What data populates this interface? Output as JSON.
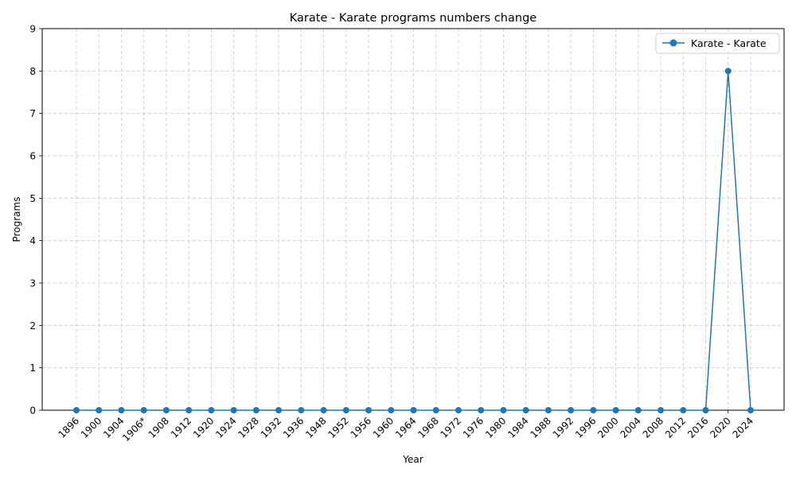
{
  "chart_data": {
    "type": "line",
    "title": "Karate - Karate programs numbers change",
    "xlabel": "Year",
    "ylabel": "Programs",
    "categories": [
      "1896",
      "1900",
      "1904",
      "1906*",
      "1908",
      "1912",
      "1920",
      "1924",
      "1928",
      "1932",
      "1936",
      "1948",
      "1952",
      "1956",
      "1960",
      "1964",
      "1968",
      "1972",
      "1976",
      "1980",
      "1984",
      "1988",
      "1992",
      "1996",
      "2000",
      "2004",
      "2008",
      "2012",
      "2016",
      "2020",
      "2024"
    ],
    "series": [
      {
        "name": "Karate - Karate",
        "values": [
          0,
          0,
          0,
          0,
          0,
          0,
          0,
          0,
          0,
          0,
          0,
          0,
          0,
          0,
          0,
          0,
          0,
          0,
          0,
          0,
          0,
          0,
          0,
          0,
          0,
          0,
          0,
          0,
          0,
          8,
          0
        ],
        "color": "#1f77b4"
      }
    ],
    "ylim": [
      0,
      9
    ],
    "yticks": [
      0,
      1,
      2,
      3,
      4,
      5,
      6,
      7,
      8,
      9
    ],
    "grid": true,
    "legend_position": "top-right"
  }
}
